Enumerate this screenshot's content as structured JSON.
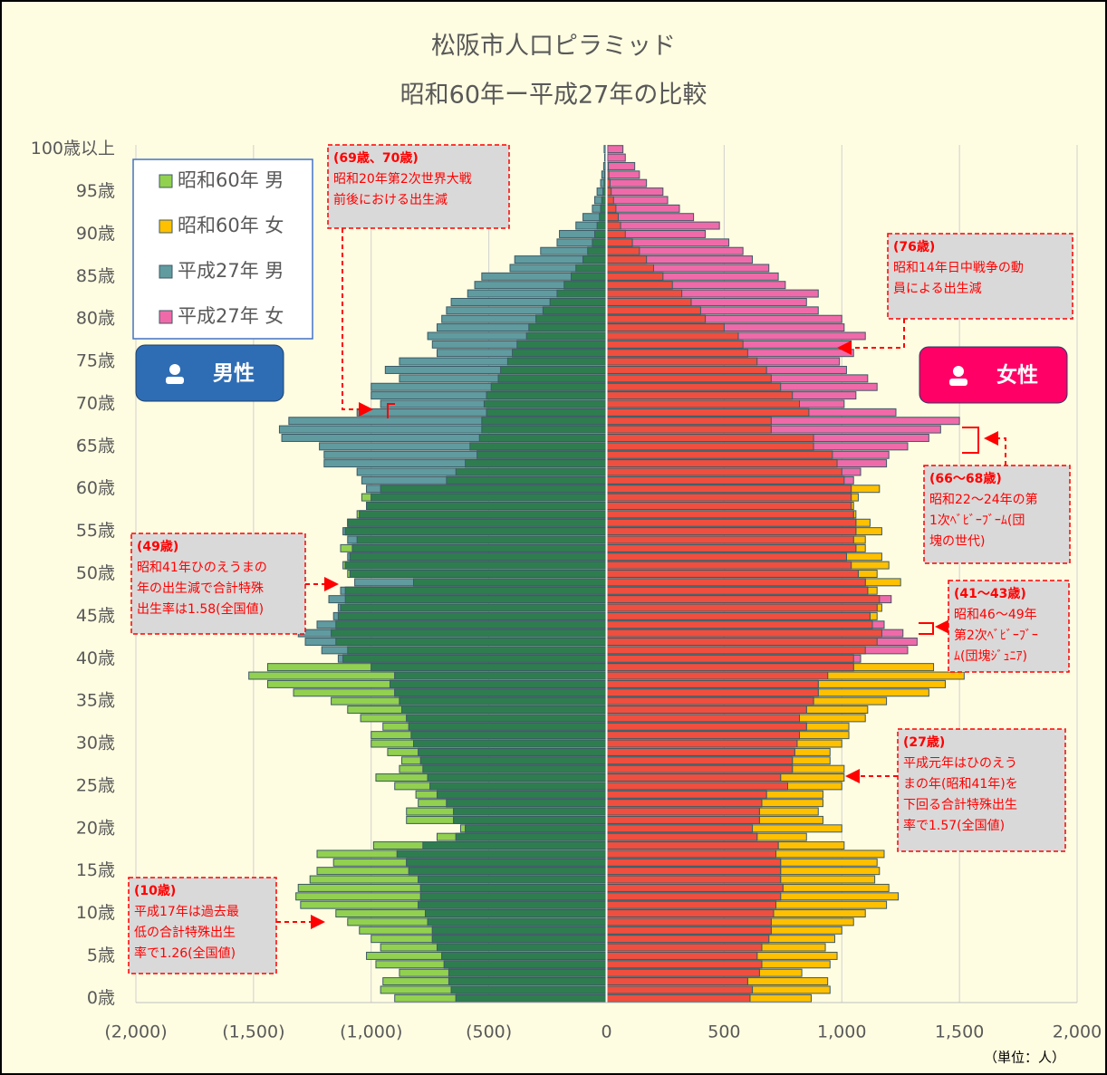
{
  "chart_data": {
    "type": "pyramid",
    "title": "松阪市人口ピラミッド",
    "subtitle": "昭和60年ー平成27年の比較",
    "unit_label": "（単位：人）",
    "side_labels": [
      "男性",
      "女性"
    ],
    "side_colors": [
      "#2e6db4",
      "#ff0066"
    ],
    "overlap_colors": [
      "#2e7d4f",
      "#f04e3e"
    ],
    "categories": [
      "0歳",
      null,
      null,
      null,
      null,
      "5歳",
      null,
      null,
      null,
      null,
      "10歳",
      null,
      null,
      null,
      null,
      "15歳",
      null,
      null,
      null,
      null,
      "20歳",
      null,
      null,
      null,
      null,
      "25歳",
      null,
      null,
      null,
      null,
      "30歳",
      null,
      null,
      null,
      null,
      "35歳",
      null,
      null,
      null,
      null,
      "40歳",
      null,
      null,
      null,
      null,
      "45歳",
      null,
      null,
      null,
      null,
      "50歳",
      null,
      null,
      null,
      null,
      "55歳",
      null,
      null,
      null,
      null,
      "60歳",
      null,
      null,
      null,
      null,
      "65歳",
      null,
      null,
      null,
      null,
      "70歳",
      null,
      null,
      null,
      null,
      "75歳",
      null,
      null,
      null,
      null,
      "80歳",
      null,
      null,
      null,
      null,
      "85歳",
      null,
      null,
      null,
      null,
      "90歳",
      null,
      null,
      null,
      null,
      "95歳",
      null,
      null,
      null,
      null,
      "100歳以上"
    ],
    "series": [
      {
        "name": "昭和60年 男",
        "color": "#92d050",
        "side": 0,
        "values": [
          -900,
          -960,
          -950,
          -880,
          -980,
          -1020,
          -960,
          -1000,
          -1050,
          -1100,
          -1150,
          -1300,
          -1320,
          -1310,
          -1260,
          -1230,
          -1160,
          -1230,
          -990,
          -720,
          -620,
          -850,
          -850,
          -800,
          -810,
          -900,
          -980,
          -880,
          -870,
          -930,
          -1000,
          -1000,
          -950,
          -1045,
          -1100,
          -1170,
          -1330,
          -1440,
          -1520,
          -1440,
          -1120,
          -1100,
          -1150,
          -1170,
          -1150,
          -1140,
          -1130,
          -1110,
          -1110,
          -820,
          -1100,
          -1120,
          -1090,
          -1130,
          -1060,
          -1110,
          -1100,
          -1060,
          -1020,
          -1040,
          -960,
          -680,
          -640,
          -600,
          -550,
          -580,
          -540,
          -530,
          -530,
          -510,
          -520,
          -510,
          -490,
          -460,
          -450,
          -420,
          -400,
          -380,
          -340,
          -330,
          -300,
          -270,
          -240,
          -210,
          -180,
          -150,
          -130,
          -100,
          -80,
          -60,
          -50,
          -40,
          -30,
          -25,
          -20,
          -15,
          -10,
          -8,
          -5,
          -3,
          -4
        ]
      },
      {
        "name": "昭和60年 女",
        "color": "#ffc000",
        "side": 1,
        "values": [
          870,
          950,
          940,
          830,
          950,
          980,
          930,
          970,
          1000,
          1050,
          1100,
          1190,
          1240,
          1200,
          1140,
          1160,
          1150,
          1180,
          1010,
          850,
          1000,
          920,
          900,
          920,
          920,
          1000,
          1010,
          1010,
          950,
          950,
          1000,
          1030,
          1030,
          1100,
          1110,
          1190,
          1370,
          1440,
          1520,
          1390,
          1050,
          1100,
          1150,
          1170,
          1130,
          1150,
          1170,
          1160,
          1150,
          1250,
          1150,
          1200,
          1170,
          1100,
          1100,
          1170,
          1120,
          1060,
          1050,
          1070,
          1160,
          1010,
          1000,
          980,
          960,
          880,
          880,
          700,
          700,
          860,
          820,
          790,
          740,
          700,
          680,
          640,
          600,
          580,
          560,
          500,
          420,
          400,
          360,
          320,
          280,
          240,
          200,
          170,
          140,
          110,
          80,
          60,
          50,
          40,
          30,
          20,
          15,
          10,
          8,
          5,
          5
        ]
      },
      {
        "name": "平成27年 男",
        "color": "#609ba0",
        "side": 0,
        "values": [
          -640,
          -660,
          -670,
          -670,
          -690,
          -700,
          -720,
          -740,
          -740,
          -760,
          -770,
          -800,
          -790,
          -790,
          -800,
          -840,
          -850,
          -890,
          -780,
          -640,
          -600,
          -650,
          -650,
          -680,
          -720,
          -750,
          -760,
          -780,
          -790,
          -800,
          -820,
          -830,
          -840,
          -850,
          -870,
          -880,
          -900,
          -920,
          -900,
          -1000,
          -1140,
          -1210,
          -1280,
          -1310,
          -1230,
          -1160,
          -1140,
          -1180,
          -1130,
          -1070,
          -1090,
          -1110,
          -1100,
          -1080,
          -1100,
          -1120,
          -1100,
          -1050,
          -1020,
          -1000,
          -1020,
          -1040,
          -1060,
          -1200,
          -1200,
          -1220,
          -1380,
          -1390,
          -1350,
          -1060,
          -960,
          -1000,
          -1000,
          -880,
          -940,
          -880,
          -720,
          -740,
          -760,
          -720,
          -700,
          -680,
          -660,
          -590,
          -560,
          -530,
          -410,
          -390,
          -280,
          -210,
          -200,
          -130,
          -100,
          -60,
          -50,
          -40,
          -25,
          -20,
          -12,
          -8,
          -10
        ]
      },
      {
        "name": "平成27年 女",
        "color": "#f06aa9",
        "side": 1,
        "values": [
          610,
          620,
          600,
          650,
          660,
          640,
          660,
          690,
          700,
          700,
          710,
          720,
          740,
          750,
          740,
          740,
          740,
          720,
          730,
          640,
          620,
          650,
          650,
          660,
          680,
          770,
          740,
          790,
          790,
          800,
          810,
          820,
          850,
          820,
          850,
          880,
          900,
          900,
          940,
          1050,
          1080,
          1280,
          1320,
          1260,
          1180,
          1120,
          1150,
          1210,
          1110,
          1100,
          1070,
          1040,
          1020,
          1060,
          1050,
          1060,
          1060,
          1050,
          1040,
          1040,
          1040,
          1050,
          1080,
          1190,
          1200,
          1280,
          1370,
          1420,
          1500,
          1230,
          1010,
          1060,
          1150,
          1110,
          1020,
          990,
          1050,
          1040,
          1100,
          1010,
          1000,
          900,
          850,
          900,
          760,
          730,
          690,
          620,
          580,
          520,
          420,
          480,
          370,
          310,
          260,
          240,
          170,
          140,
          120,
          80,
          70
        ]
      }
    ],
    "xlim": [
      -2000,
      2000
    ],
    "xticks": [
      {
        "value": -2000,
        "label": "(2,000)"
      },
      {
        "value": -1500,
        "label": "(1,500)"
      },
      {
        "value": -1000,
        "label": "(1,000)"
      },
      {
        "value": -500,
        "label": "(500)"
      },
      0,
      500,
      {
        "value": 1000,
        "label": "1,000"
      },
      {
        "value": 1500,
        "label": "1,500"
      },
      {
        "value": 2000,
        "label": "2,000"
      }
    ],
    "grid": true,
    "legend": "upper left",
    "annotations": [
      {
        "lines": [
          "(69歳、70歳)",
          "昭和20年第2次世界大戦",
          "前後における出生減"
        ]
      },
      {
        "lines": [
          "(76歳)",
          "昭和14年日中戦争の動",
          "員による出生減"
        ]
      },
      {
        "lines": [
          "(66～68歳)",
          "昭和22～24年の第",
          "1次ﾍﾞﾋﾞｰﾌﾞｰﾑ(団",
          "塊の世代)"
        ]
      },
      {
        "lines": [
          "(41～43歳)",
          "昭和46～49年",
          "第2次ﾍﾞﾋﾞｰﾌﾞｰ",
          "ﾑ(団塊ｼﾞｭﾆｱ)"
        ]
      },
      {
        "lines": [
          "(49歳)",
          "昭和41年ひのえうまの",
          "年の出生減で合計特殊",
          "出生率は1.58(全国値)"
        ]
      },
      {
        "lines": [
          "(27歳)",
          "平成元年はひのえう",
          "まの年(昭和41年)を",
          "下回る合計特殊出生",
          "率で1.57(全国値)"
        ]
      },
      {
        "lines": [
          "(10歳)",
          "平成17年は過去最",
          "低の合計特殊出生",
          "率で1.26(全国値)"
        ]
      }
    ]
  }
}
